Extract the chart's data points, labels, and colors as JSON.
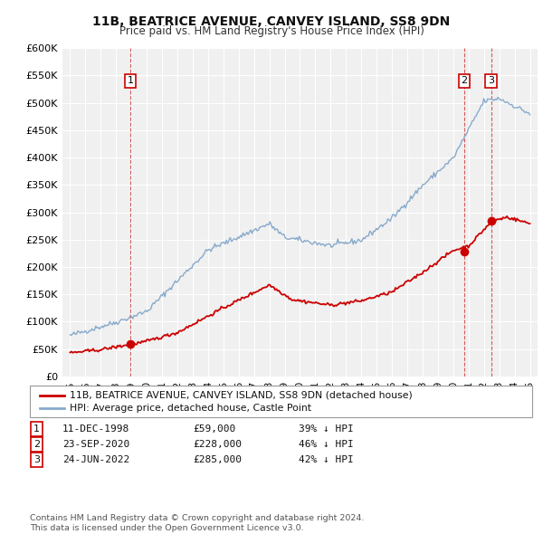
{
  "title": "11B, BEATRICE AVENUE, CANVEY ISLAND, SS8 9DN",
  "subtitle": "Price paid vs. HM Land Registry's House Price Index (HPI)",
  "ylim": [
    0,
    600000
  ],
  "yticks": [
    0,
    50000,
    100000,
    150000,
    200000,
    250000,
    300000,
    350000,
    400000,
    450000,
    500000,
    550000,
    600000
  ],
  "ytick_labels": [
    "£0",
    "£50K",
    "£100K",
    "£150K",
    "£200K",
    "£250K",
    "£300K",
    "£350K",
    "£400K",
    "£450K",
    "£500K",
    "£550K",
    "£600K"
  ],
  "background_color": "#f0f0f0",
  "grid_color": "#ffffff",
  "red_line_color": "#cc0000",
  "blue_line_color": "#88aacc",
  "sale_markers": [
    {
      "id": 1,
      "year": 1998.94,
      "price": 59000,
      "label": "1"
    },
    {
      "id": 2,
      "year": 2020.72,
      "price": 228000,
      "label": "2"
    },
    {
      "id": 3,
      "year": 2022.47,
      "price": 285000,
      "label": "3"
    }
  ],
  "legend_label_red": "11B, BEATRICE AVENUE, CANVEY ISLAND, SS8 9DN (detached house)",
  "legend_label_blue": "HPI: Average price, detached house, Castle Point",
  "table_rows": [
    {
      "num": "1",
      "date": "11-DEC-1998",
      "price": "£59,000",
      "hpi": "39% ↓ HPI"
    },
    {
      "num": "2",
      "date": "23-SEP-2020",
      "price": "£228,000",
      "hpi": "46% ↓ HPI"
    },
    {
      "num": "3",
      "date": "24-JUN-2022",
      "price": "£285,000",
      "hpi": "42% ↓ HPI"
    }
  ],
  "footer": "Contains HM Land Registry data © Crown copyright and database right 2024.\nThis data is licensed under the Open Government Licence v3.0.",
  "xmin": 1994.5,
  "xmax": 2025.5
}
